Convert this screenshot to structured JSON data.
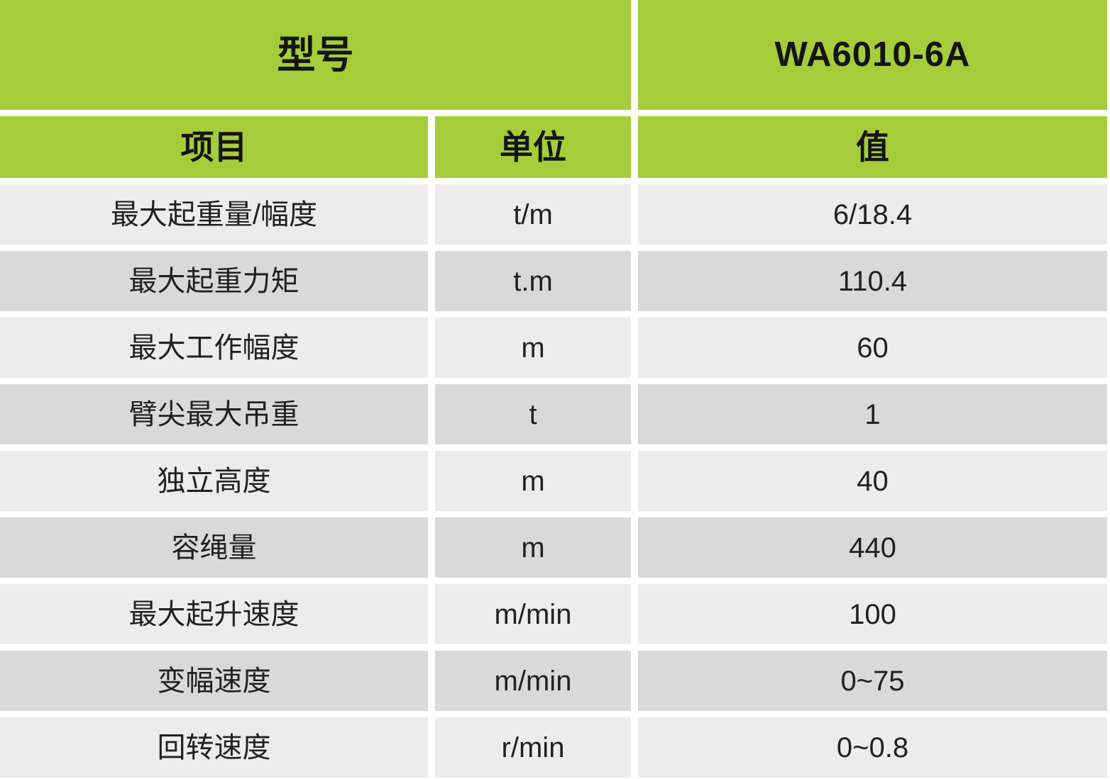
{
  "table": {
    "header": {
      "model_label": "型号",
      "model_value": "WA6010-6A",
      "col_item": "项目",
      "col_unit": "单位",
      "col_value": "值"
    },
    "rows": [
      {
        "item": "最大起重量/幅度",
        "unit": "t/m",
        "value": "6/18.4"
      },
      {
        "item": "最大起重力矩",
        "unit": "t.m",
        "value": "110.4"
      },
      {
        "item": "最大工作幅度",
        "unit": "m",
        "value": "60"
      },
      {
        "item": "臂尖最大吊重",
        "unit": "t",
        "value": "1"
      },
      {
        "item": "独立高度",
        "unit": "m",
        "value": "40"
      },
      {
        "item": "容绳量",
        "unit": "m",
        "value": "440"
      },
      {
        "item": "最大起升速度",
        "unit": "m/min",
        "value": "100"
      },
      {
        "item": "变幅速度",
        "unit": "m/min",
        "value": "0~75"
      },
      {
        "item": "回转速度",
        "unit": "r/min",
        "value": "0~0.8"
      }
    ]
  },
  "colors": {
    "header_green": "#a5cd39",
    "row_light": "#ececec",
    "row_dark": "#d9d9d9",
    "gap_white": "#ffffff",
    "text": "#1b1b1b"
  }
}
